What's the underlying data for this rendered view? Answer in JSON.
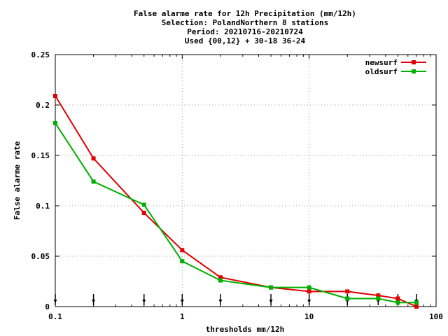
{
  "chart_data": {
    "type": "line",
    "title_lines": [
      "False alarme rate  for 12h Precipitation (mm/12h)",
      "Selection: PolandNorthern      8 stations",
      "Period: 20210716-20210724",
      "Used {00,12} + 30-18 36-24"
    ],
    "xlabel": "thresholds mm/12h",
    "ylabel": "False alarme rate",
    "x_scale": "log",
    "xlim": [
      0.1,
      100
    ],
    "ylim": [
      0,
      0.25
    ],
    "x_ticks": [
      0.1,
      1,
      10,
      100
    ],
    "x_tick_labels": [
      "0.1",
      "1",
      "10",
      "100"
    ],
    "y_ticks": [
      0,
      0.05,
      0.1,
      0.15,
      0.2,
      0.25
    ],
    "y_tick_labels": [
      "0",
      "0.05",
      "0.1",
      "0.15",
      "0.2",
      "0.25"
    ],
    "grid": true,
    "legend_position": "top-right",
    "threshold_markers": [
      0.1,
      0.2,
      0.5,
      1,
      2,
      5,
      10,
      20,
      35,
      50,
      70
    ],
    "series": [
      {
        "name": "newsurf",
        "color": "#e00000",
        "x": [
          0.1,
          0.2,
          0.5,
          1,
          2,
          5,
          10,
          20,
          35,
          50,
          70
        ],
        "values": [
          0.209,
          0.147,
          0.093,
          0.056,
          0.029,
          0.019,
          0.015,
          0.015,
          0.011,
          0.008,
          0.0
        ]
      },
      {
        "name": "oldsurf",
        "color": "#00b000",
        "x": [
          0.1,
          0.2,
          0.5,
          1,
          2,
          5,
          10,
          20,
          35,
          50,
          70
        ],
        "values": [
          0.182,
          0.124,
          0.101,
          0.045,
          0.026,
          0.019,
          0.019,
          0.008,
          0.008,
          0.004,
          0.004
        ]
      }
    ]
  }
}
